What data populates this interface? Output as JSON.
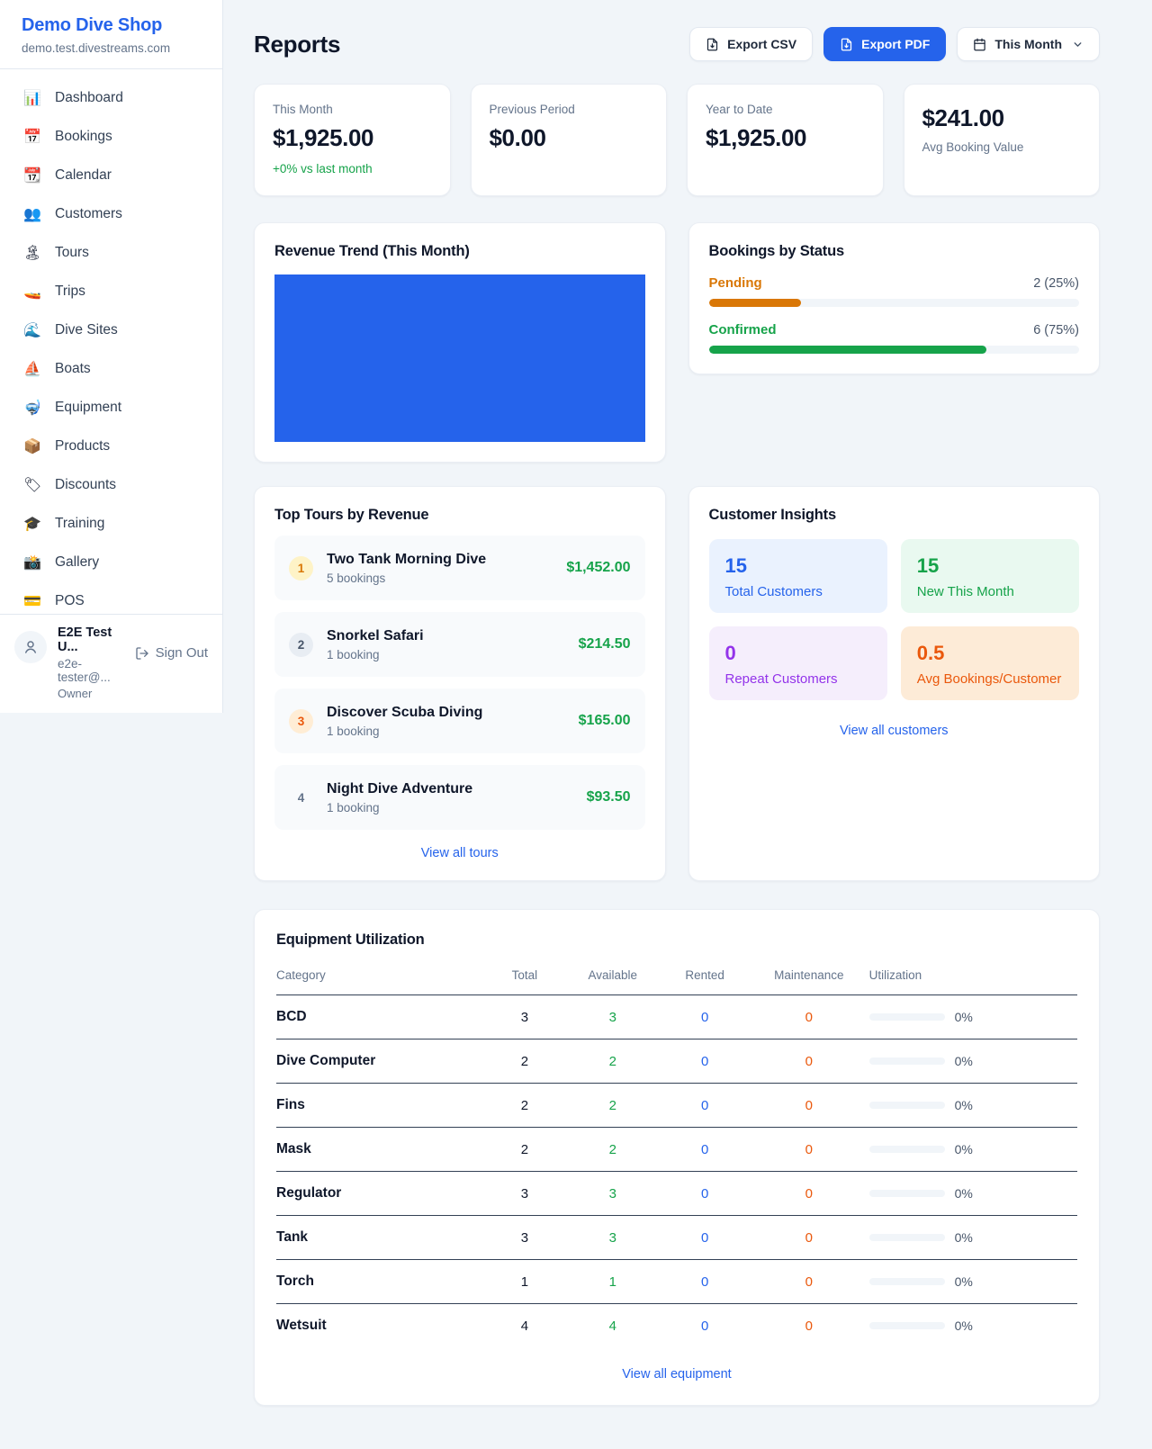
{
  "colors": {
    "accent_blue": "#2563eb",
    "green": "#16a34a",
    "orange_pending": "#d97706",
    "orange_maintenance": "#ea580c",
    "purple": "#9333ea",
    "page_background": "#f1f5f9"
  },
  "sidebar": {
    "title": "Demo Dive Shop",
    "domain": "demo.test.divestreams.com",
    "items": [
      {
        "icon": "📊",
        "label": "Dashboard"
      },
      {
        "icon": "📅",
        "label": "Bookings"
      },
      {
        "icon": "📆",
        "label": "Calendar"
      },
      {
        "icon": "👥",
        "label": "Customers"
      },
      {
        "icon": "🏝",
        "label": "Tours"
      },
      {
        "icon": "🚤",
        "label": "Trips"
      },
      {
        "icon": "🌊",
        "label": "Dive Sites"
      },
      {
        "icon": "⛵",
        "label": "Boats"
      },
      {
        "icon": "🤿",
        "label": "Equipment"
      },
      {
        "icon": "📦",
        "label": "Products"
      },
      {
        "icon": "🏷",
        "label": "Discounts"
      },
      {
        "icon": "🎓",
        "label": "Training"
      },
      {
        "icon": "📸",
        "label": "Gallery"
      },
      {
        "icon": "💳",
        "label": "POS"
      }
    ],
    "user": {
      "name": "E2E Test U...",
      "email": "e2e-tester@...",
      "role": "Owner",
      "sign_out": "Sign Out"
    }
  },
  "header": {
    "title": "Reports",
    "export_csv": "Export CSV",
    "export_pdf": "Export PDF",
    "period": "This Month"
  },
  "stats": {
    "cards": [
      {
        "label": "This Month",
        "value": "$1,925.00",
        "delta": "+0% vs last month"
      },
      {
        "label": "Previous Period",
        "value": "$0.00"
      },
      {
        "label": "Year to Date",
        "value": "$1,925.00"
      },
      {
        "label": "Avg Booking Value",
        "value": "$241.00"
      }
    ]
  },
  "revenue_trend": {
    "title": "Revenue Trend (This Month)"
  },
  "chart_data": [
    {
      "type": "bar",
      "title": "Revenue Trend (This Month)",
      "categories": [
        "This Month"
      ],
      "values": [
        1925
      ],
      "bar_color": "#2563eb",
      "note": "single solid blue bar filling the entire plot area; no axes, ticks or labels visible"
    },
    {
      "type": "bar",
      "title": "Bookings by Status",
      "categories": [
        "Pending",
        "Confirmed"
      ],
      "values": [
        2,
        6
      ],
      "percents": [
        25,
        75
      ],
      "colors": [
        "#d97706",
        "#16a34a"
      ]
    }
  ],
  "bookings_by_status": {
    "title": "Bookings by Status",
    "rows": [
      {
        "label": "Pending",
        "count": "2 (25%)",
        "percent": 25
      },
      {
        "label": "Confirmed",
        "count": "6 (75%)",
        "percent": 75
      }
    ]
  },
  "top_tours": {
    "title": "Top Tours by Revenue",
    "view_all": "View all tours",
    "rows": [
      {
        "rank": "1",
        "name": "Two Tank Morning Dive",
        "bookings": "5 bookings",
        "revenue": "$1,452.00"
      },
      {
        "rank": "2",
        "name": "Snorkel Safari",
        "bookings": "1 booking",
        "revenue": "$214.50"
      },
      {
        "rank": "3",
        "name": "Discover Scuba Diving",
        "bookings": "1 booking",
        "revenue": "$165.00"
      },
      {
        "rank": "4",
        "name": "Night Dive Adventure",
        "bookings": "1 booking",
        "revenue": "$93.50"
      }
    ]
  },
  "customer_insights": {
    "title": "Customer Insights",
    "view_all": "View all customers",
    "tiles": [
      {
        "value": "15",
        "label": "Total Customers"
      },
      {
        "value": "15",
        "label": "New This Month"
      },
      {
        "value": "0",
        "label": "Repeat Customers"
      },
      {
        "value": "0.5",
        "label": "Avg Bookings/Customer"
      }
    ]
  },
  "equipment": {
    "title": "Equipment Utilization",
    "view_all": "View all equipment",
    "columns": [
      "Category",
      "Total",
      "Available",
      "Rented",
      "Maintenance",
      "Utilization"
    ],
    "rows": [
      {
        "category": "BCD",
        "total": "3",
        "available": "3",
        "rented": "0",
        "maintenance": "0",
        "utilization": "0%"
      },
      {
        "category": "Dive Computer",
        "total": "2",
        "available": "2",
        "rented": "0",
        "maintenance": "0",
        "utilization": "0%"
      },
      {
        "category": "Fins",
        "total": "2",
        "available": "2",
        "rented": "0",
        "maintenance": "0",
        "utilization": "0%"
      },
      {
        "category": "Mask",
        "total": "2",
        "available": "2",
        "rented": "0",
        "maintenance": "0",
        "utilization": "0%"
      },
      {
        "category": "Regulator",
        "total": "3",
        "available": "3",
        "rented": "0",
        "maintenance": "0",
        "utilization": "0%"
      },
      {
        "category": "Tank",
        "total": "3",
        "available": "3",
        "rented": "0",
        "maintenance": "0",
        "utilization": "0%"
      },
      {
        "category": "Torch",
        "total": "1",
        "available": "1",
        "rented": "0",
        "maintenance": "0",
        "utilization": "0%"
      },
      {
        "category": "Wetsuit",
        "total": "4",
        "available": "4",
        "rented": "0",
        "maintenance": "0",
        "utilization": "0%"
      }
    ]
  }
}
